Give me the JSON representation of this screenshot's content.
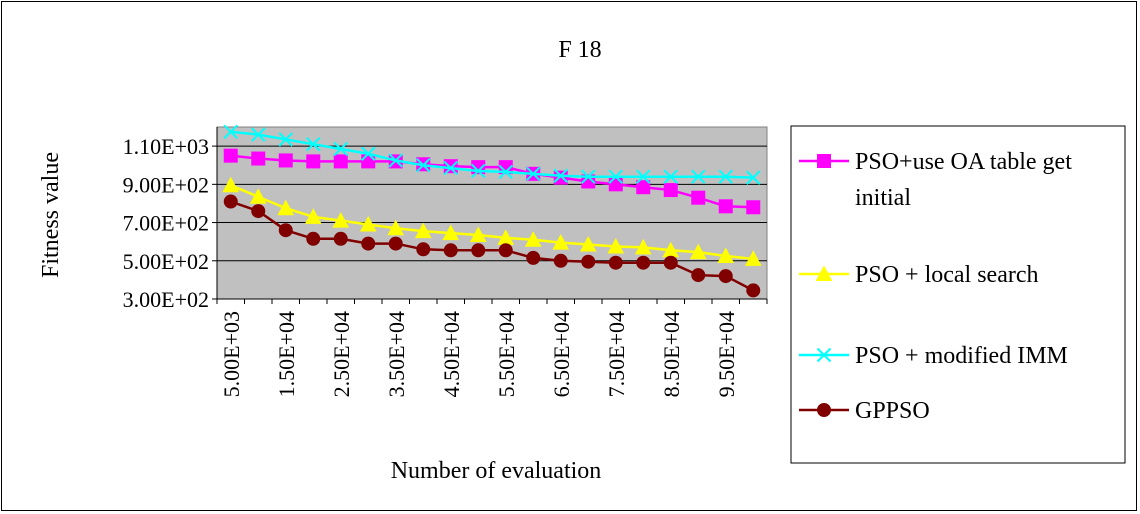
{
  "chart_data": {
    "type": "line",
    "title": "F 18",
    "xlabel": "Number of evaluation",
    "ylabel": "Fitness value",
    "ylim": [
      300,
      1200
    ],
    "y_ticks": [
      300,
      500,
      700,
      900,
      1100
    ],
    "y_tick_labels": [
      "3.00E+02",
      "5.00E+02",
      "7.00E+02",
      "9.00E+02",
      "1.10E+03"
    ],
    "x": [
      5000,
      10000,
      15000,
      20000,
      25000,
      30000,
      35000,
      40000,
      45000,
      50000,
      55000,
      60000,
      65000,
      70000,
      75000,
      80000,
      85000,
      90000,
      95000,
      100000
    ],
    "x_tick_labels": [
      "5.00E+03",
      "1.50E+04",
      "2.50E+04",
      "3.50E+04",
      "4.50E+04",
      "5.50E+04",
      "6.50E+04",
      "7.50E+04",
      "8.50E+04",
      "9.50E+04"
    ],
    "x_tick_values": [
      5000,
      15000,
      25000,
      35000,
      45000,
      55000,
      65000,
      75000,
      85000,
      95000
    ],
    "grid": "horizontal",
    "plot_background": "#c0c0c0",
    "legend_position": "right",
    "series": [
      {
        "name": "PSO+use OA table get initial",
        "legend_lines": [
          "PSO+use OA table get",
          "initial"
        ],
        "color": "#ff00ff",
        "marker": "square",
        "values": [
          1050,
          1035,
          1025,
          1020,
          1020,
          1020,
          1020,
          1005,
          995,
          990,
          990,
          955,
          935,
          915,
          900,
          885,
          870,
          830,
          785,
          780
        ]
      },
      {
        "name": "PSO + local search",
        "legend_lines": [
          "PSO + local search"
        ],
        "color": "#ffff00",
        "marker": "triangle",
        "values": [
          895,
          835,
          775,
          730,
          710,
          690,
          670,
          655,
          645,
          635,
          620,
          610,
          595,
          585,
          575,
          570,
          555,
          545,
          525,
          510
        ]
      },
      {
        "name": "PSO + modified IMM",
        "legend_lines": [
          "PSO + modified IMM"
        ],
        "color": "#00ffff",
        "marker": "x",
        "values": [
          1175,
          1160,
          1135,
          1110,
          1085,
          1060,
          1025,
          1000,
          985,
          970,
          965,
          955,
          945,
          940,
          940,
          940,
          940,
          940,
          940,
          935
        ]
      },
      {
        "name": "GPPSO",
        "legend_lines": [
          "GPPSO"
        ],
        "color": "#800000",
        "marker": "circle",
        "values": [
          810,
          760,
          660,
          615,
          615,
          590,
          590,
          560,
          555,
          555,
          555,
          515,
          500,
          495,
          490,
          490,
          490,
          425,
          420,
          345
        ]
      }
    ]
  }
}
